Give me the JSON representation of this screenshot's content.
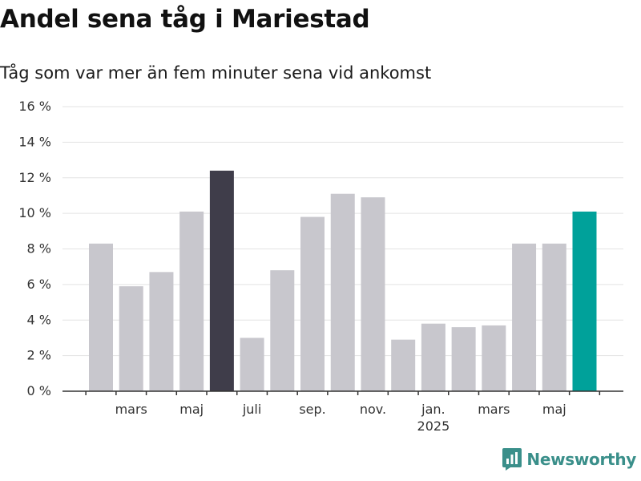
{
  "colors": {
    "bar_default": "#c8c7cd",
    "bar_highlight_max": "#3f3d4a",
    "bar_highlight_latest": "#00a19a",
    "gridline": "#e3e3e3",
    "axis": "#333333",
    "brand": "#3a8f8a"
  },
  "chart_data": {
    "type": "bar",
    "title": "Andel sena tåg i Mariestad",
    "subtitle": "Tåg som var mer än fem minuter sena vid ankomst",
    "xlabel": "",
    "ylabel": "",
    "x_unit": "month",
    "months": [
      "2024-02",
      "2024-03",
      "2024-04",
      "2024-05",
      "2024-06",
      "2024-07",
      "2024-08",
      "2024-09",
      "2024-10",
      "2024-11",
      "2024-12",
      "2025-01",
      "2025-02",
      "2025-03",
      "2025-04",
      "2025-05",
      "2025-06"
    ],
    "values": [
      8.3,
      5.9,
      6.7,
      10.1,
      12.4,
      3.0,
      6.8,
      9.8,
      11.1,
      10.9,
      2.9,
      3.8,
      3.6,
      3.7,
      8.3,
      8.3,
      10.1
    ],
    "highlight": {
      "max": "2024-06",
      "latest": "2025-06"
    },
    "ylim": [
      0,
      16
    ],
    "y_ticks": [
      0,
      2,
      4,
      6,
      8,
      10,
      12,
      14,
      16
    ],
    "y_tick_labels": [
      "0 %",
      "2 %",
      "4 %",
      "6 %",
      "8 %",
      "10 %",
      "12 %",
      "14 %",
      "16 %"
    ],
    "x_tick_labels": [
      {
        "month": "2024-03",
        "label": "mars"
      },
      {
        "month": "2024-05",
        "label": "maj"
      },
      {
        "month": "2024-07",
        "label": "juli"
      },
      {
        "month": "2024-09",
        "label": "sep."
      },
      {
        "month": "2024-11",
        "label": "nov."
      },
      {
        "month": "2025-01",
        "label": "jan.",
        "sublabel": "2025"
      },
      {
        "month": "2025-03",
        "label": "mars"
      },
      {
        "month": "2025-05",
        "label": "maj"
      }
    ],
    "grid": true,
    "legend": "none"
  },
  "branding": {
    "name": "Newsworthy",
    "icon": "newsworthy-logo-icon"
  }
}
